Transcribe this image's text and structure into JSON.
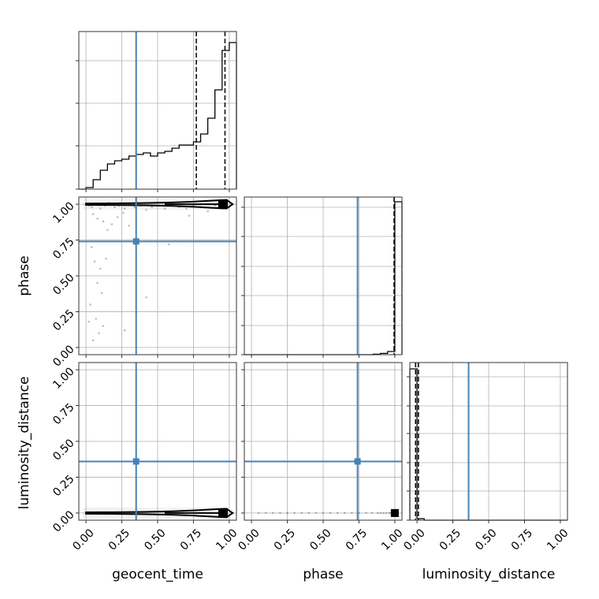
{
  "chart_data": {
    "type": "corner",
    "parameters": [
      "geocent_time",
      "phase",
      "luminosity_distance"
    ],
    "tick_labels": [
      "0.00",
      "0.25",
      "0.50",
      "0.75",
      "1.00"
    ],
    "range": [
      -0.05,
      1.05
    ],
    "grid": true,
    "truth_color": "#4682b4",
    "line_color": "#000000",
    "truths": {
      "geocent_time": 0.35,
      "phase": 0.74,
      "luminosity_distance": 0.36
    },
    "quantiles": {
      "geocent_time": [
        0.35,
        0.77,
        0.97
      ],
      "phase": [
        0.995
      ],
      "luminosity_distance": [
        -0.01,
        0.01
      ]
    },
    "histograms": {
      "geocent_time": {
        "bin_edges": [
          -0.05,
          0.0,
          0.05,
          0.1,
          0.15,
          0.2,
          0.25,
          0.3,
          0.35,
          0.4,
          0.45,
          0.5,
          0.55,
          0.6,
          0.65,
          0.7,
          0.75,
          0.8,
          0.85,
          0.9,
          0.95,
          1.0,
          1.05
        ],
        "counts": [
          0.0,
          0.01,
          0.06,
          0.12,
          0.16,
          0.18,
          0.19,
          0.21,
          0.22,
          0.23,
          0.21,
          0.23,
          0.24,
          0.26,
          0.28,
          0.28,
          0.3,
          0.35,
          0.45,
          0.63,
          0.88,
          0.93
        ],
        "ylim": [
          0,
          1.0
        ]
      },
      "phase": {
        "bin_edges": [
          -0.05,
          0.0,
          0.05,
          0.1,
          0.15,
          0.2,
          0.25,
          0.3,
          0.35,
          0.4,
          0.45,
          0.5,
          0.55,
          0.6,
          0.65,
          0.7,
          0.75,
          0.8,
          0.85,
          0.9,
          0.95,
          1.0,
          1.05
        ],
        "counts": [
          0,
          0,
          0,
          0,
          0,
          0,
          0,
          0,
          0,
          0,
          0,
          0,
          0,
          0,
          0,
          0,
          0,
          0,
          0.003,
          0.008,
          0.02,
          0.97
        ],
        "ylim": [
          0,
          1.0
        ]
      },
      "luminosity_distance": {
        "bin_edges": [
          -0.05,
          0.0,
          0.05,
          0.1,
          0.15,
          0.2,
          0.25,
          0.3,
          0.35,
          0.4,
          0.45,
          0.5,
          0.55,
          0.6,
          0.65,
          0.7,
          0.75,
          0.8,
          0.85,
          0.9,
          0.95,
          1.0,
          1.05
        ],
        "counts": [
          0.96,
          0.01,
          0,
          0,
          0,
          0,
          0,
          0,
          0,
          0,
          0,
          0,
          0,
          0,
          0,
          0,
          0,
          0,
          0,
          0,
          0,
          0
        ],
        "ylim": [
          0,
          1.0
        ]
      }
    },
    "scatter": {
      "phase_vs_geocent_time": {
        "x": [
          0.02,
          0.04,
          0.07,
          0.1,
          0.13,
          0.16,
          0.2,
          0.23,
          0.27,
          0.3,
          0.34,
          0.38,
          0.42,
          0.46,
          0.5,
          0.55,
          0.6,
          0.65,
          0.7,
          0.75,
          0.8,
          0.85,
          0.9,
          0.95,
          1.0,
          0.05,
          0.08,
          0.12,
          0.15,
          0.18,
          0.22,
          0.26,
          0.3,
          0.04,
          0.06,
          0.1,
          0.14,
          0.08,
          0.11,
          0.03,
          0.07,
          0.12,
          0.02,
          0.05,
          0.09,
          0.42,
          0.58,
          0.72,
          0.85,
          0.27
        ],
        "y": [
          0.99,
          0.98,
          1.0,
          0.97,
          0.99,
          1.01,
          0.98,
          0.99,
          0.97,
          1.0,
          0.98,
          0.99,
          0.96,
          0.98,
          0.99,
          0.97,
          1.0,
          0.98,
          0.97,
          0.99,
          0.98,
          1.0,
          0.99,
          0.97,
          0.98,
          0.93,
          0.9,
          0.88,
          0.82,
          0.86,
          0.91,
          0.94,
          0.85,
          0.7,
          0.6,
          0.55,
          0.62,
          0.45,
          0.38,
          0.3,
          0.2,
          0.15,
          0.18,
          0.05,
          0.1,
          0.35,
          0.72,
          0.92,
          0.95,
          0.12
        ],
        "core": {
          "x": [
            0.0,
            0.2,
            0.4,
            0.6,
            0.75,
            0.9,
            0.98
          ],
          "y": 1.0,
          "half_width": [
            0.005,
            0.006,
            0.008,
            0.012,
            0.018,
            0.026,
            0.03
          ]
        }
      },
      "luminosity_distance_vs_geocent_time": {
        "core": {
          "x": [
            0.0,
            0.2,
            0.4,
            0.6,
            0.75,
            0.9,
            0.98
          ],
          "y": 0.0,
          "half_width": [
            0.005,
            0.006,
            0.008,
            0.012,
            0.018,
            0.026,
            0.03
          ]
        }
      },
      "luminosity_distance_vs_phase": {
        "x": [
          0.05,
          0.1,
          0.15,
          0.2,
          0.25,
          0.3,
          0.35,
          0.4,
          0.45,
          0.5,
          0.55,
          0.6,
          0.65,
          0.7,
          0.75,
          0.8,
          0.84,
          0.88,
          0.9,
          0.92,
          0.94,
          0.96,
          0.97,
          0.98
        ],
        "y": [
          0,
          0,
          0,
          0,
          0,
          0,
          0,
          0,
          0,
          0,
          0,
          0,
          0,
          0,
          0,
          0,
          0,
          0,
          0,
          0,
          0,
          0,
          0,
          0
        ],
        "core": {
          "x": 1.0,
          "y": 0.0
        }
      }
    }
  }
}
